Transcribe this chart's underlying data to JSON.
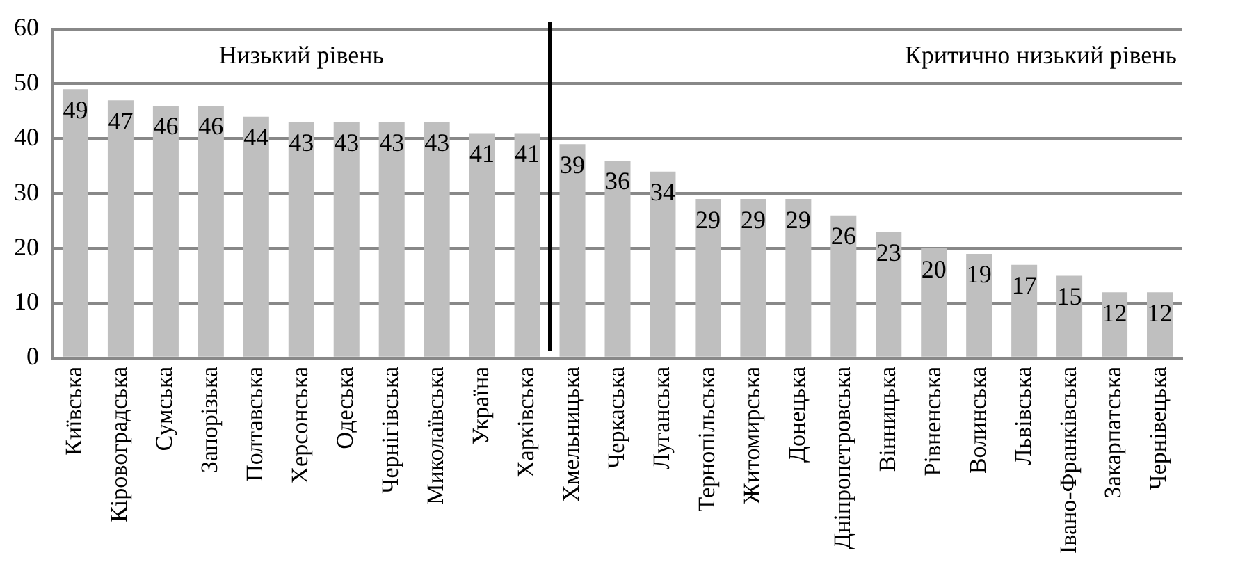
{
  "chart_data": {
    "type": "bar",
    "categories": [
      "Київська",
      "Кіровоградська",
      "Сумська",
      "Запорізька",
      "Полтавська",
      "Херсонська",
      "Одеська",
      "Чернігівська",
      "Миколаївська",
      "Україна",
      "Харківська",
      "Хмельницька",
      "Черкаська",
      "Луганська",
      "Тернопільська",
      "Житомирська",
      "Донецька",
      "Дніпропетровська",
      "Вінницька",
      "Рівненська",
      "Волинська",
      "Львівська",
      "Івано-Франківська",
      "Закарпатська",
      "Чернівецька"
    ],
    "values": [
      49,
      47,
      46,
      46,
      44,
      43,
      43,
      43,
      43,
      41,
      41,
      39,
      36,
      34,
      29,
      29,
      29,
      26,
      23,
      20,
      19,
      17,
      15,
      12,
      12
    ],
    "color": "#bfbfbf",
    "ylim": [
      0,
      60
    ],
    "yticks": [
      0,
      10,
      20,
      30,
      40,
      50,
      60
    ],
    "grid": "y",
    "legend": false,
    "data_labels": true,
    "annotations": [
      "Низький рівень",
      "Критично низький рівень"
    ]
  }
}
